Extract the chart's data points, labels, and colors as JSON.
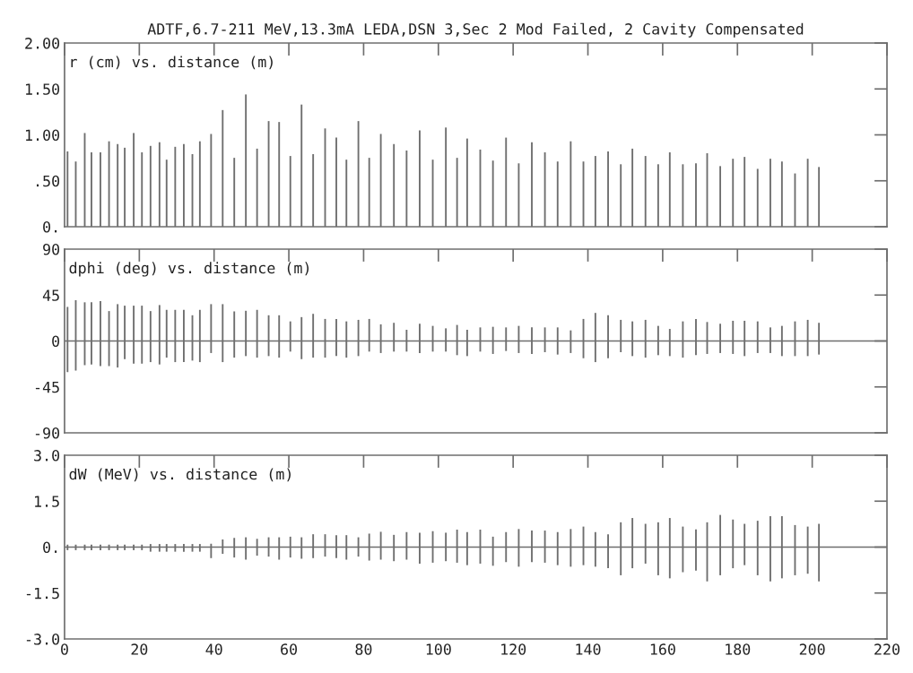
{
  "chart_data": [
    {
      "type": "bar",
      "title": "ADTF,6.7-211 MeV,13.3mA LEDA,DSN 3,Sec 2 Mod Failed, 2 Cavity Compensated",
      "subtitle": "r (cm) vs. distance (m)",
      "color": "#6e6e6e",
      "tick_labels": "y",
      "x": [
        0.8,
        3.0,
        5.4,
        7.2,
        9.6,
        11.9,
        14.2,
        16.1,
        18.5,
        20.7,
        23.0,
        25.4,
        27.3,
        29.6,
        31.9,
        34.2,
        36.2,
        39.2,
        42.3,
        45.4,
        48.5,
        51.5,
        54.6,
        57.4,
        60.4,
        63.4,
        66.5,
        69.7,
        72.7,
        75.4,
        78.6,
        81.5,
        84.6,
        88.1,
        91.5,
        95.0,
        98.5,
        102.0,
        105.0,
        107.7,
        111.2,
        114.6,
        118.1,
        121.5,
        125.0,
        128.5,
        131.9,
        135.4,
        138.8,
        142.0,
        145.4,
        148.8,
        151.9,
        155.4,
        158.8,
        161.9,
        165.4,
        168.9,
        171.9,
        175.4,
        178.8,
        181.9,
        185.4,
        188.8,
        191.9,
        195.4,
        198.8,
        201.8
      ],
      "values": [
        0.82,
        0.71,
        1.02,
        0.81,
        0.81,
        0.93,
        0.9,
        0.86,
        1.02,
        0.81,
        0.88,
        0.92,
        0.73,
        0.87,
        0.9,
        0.79,
        0.93,
        1.01,
        1.27,
        0.75,
        1.44,
        0.85,
        1.15,
        1.14,
        0.77,
        1.33,
        0.79,
        1.07,
        0.97,
        0.73,
        1.15,
        0.75,
        1.01,
        0.9,
        0.83,
        1.05,
        0.73,
        1.08,
        0.75,
        0.96,
        0.84,
        0.72,
        0.97,
        0.69,
        0.92,
        0.81,
        0.71,
        0.93,
        0.71,
        0.77,
        0.82,
        0.68,
        0.85,
        0.77,
        0.68,
        0.81,
        0.68,
        0.69,
        0.8,
        0.66,
        0.74,
        0.76,
        0.63,
        0.74,
        0.71,
        0.58,
        0.74,
        0.65
      ],
      "xlim": [
        0,
        220
      ],
      "xticks": [
        0,
        20,
        40,
        60,
        80,
        100,
        120,
        140,
        160,
        180,
        200,
        220
      ],
      "ylim": [
        0,
        2
      ],
      "yticks": [
        {
          "value": 0,
          "label": "0."
        },
        {
          "value": 0.5,
          "label": ".50"
        },
        {
          "value": 1,
          "label": "1.00"
        },
        {
          "value": 1.5,
          "label": "1.50"
        },
        {
          "value": 2,
          "label": "2.00"
        }
      ],
      "grid": false
    },
    {
      "type": "bar",
      "subtitle": "dphi (deg) vs. distance (m)",
      "color": "#6e6e6e",
      "tick_labels": "y",
      "x": [
        0.8,
        3.0,
        5.4,
        7.2,
        9.6,
        11.9,
        14.2,
        16.1,
        18.5,
        20.7,
        23.0,
        25.4,
        27.3,
        29.6,
        31.9,
        34.2,
        36.2,
        39.2,
        42.3,
        45.4,
        48.5,
        51.5,
        54.6,
        57.4,
        60.4,
        63.4,
        66.5,
        69.7,
        72.7,
        75.4,
        78.6,
        81.5,
        84.6,
        88.1,
        91.5,
        95.0,
        98.5,
        102.0,
        105.0,
        107.7,
        111.2,
        114.6,
        118.1,
        121.5,
        125.0,
        128.5,
        131.9,
        135.4,
        138.8,
        142.0,
        145.4,
        148.8,
        151.9,
        155.4,
        158.8,
        161.9,
        165.4,
        168.9,
        171.9,
        175.4,
        178.8,
        181.9,
        185.4,
        188.8,
        191.9,
        195.4,
        198.8,
        201.8
      ],
      "base": [
        -30.5,
        -29,
        -23.7,
        -23,
        -24.6,
        -24.6,
        -26,
        -17.8,
        -22.2,
        -22.2,
        -20.7,
        -23,
        -16.3,
        -20.7,
        -20.7,
        -19.2,
        -20.7,
        -11.8,
        -20.7,
        -16.3,
        -14.8,
        -16.3,
        -14.8,
        -16.3,
        -10.4,
        -17.8,
        -16.3,
        -16.3,
        -14.8,
        -16.3,
        -14.8,
        -10.4,
        -11.8,
        -10.4,
        -10.4,
        -11.8,
        -10.4,
        -10.4,
        -13.9,
        -14.8,
        -10.4,
        -12.7,
        -9.8,
        -11.8,
        -12.7,
        -11,
        -13.3,
        -11.8,
        -16.9,
        -20.7,
        -16.9,
        -11,
        -14.8,
        -16.3,
        -13.9,
        -14.8,
        -16.3,
        -13.9,
        -12.7,
        -11.8,
        -12.7,
        -14.8,
        -11.8,
        -11.8,
        -14.8,
        -14.8,
        -14.8,
        -13.3
      ],
      "values": [
        63.9,
        69,
        61.6,
        60.9,
        63.6,
        53.9,
        62.1,
        52.4,
        56.8,
        56.8,
        50,
        58.2,
        46.8,
        51.2,
        51.2,
        44.4,
        51.2,
        47.9,
        56.8,
        45.3,
        44.4,
        46.8,
        40,
        41.5,
        29.6,
        41.2,
        42.9,
        37.9,
        36.4,
        35.5,
        35.5,
        32,
        28.1,
        28.2,
        21.4,
        28.7,
        25.2,
        22.8,
        29.6,
        25.8,
        23.7,
        26.6,
        23.1,
        26.6,
        26,
        24.3,
        26.6,
        22.2,
        38.5,
        48.2,
        42.1,
        31.7,
        34,
        37,
        28.7,
        26.6,
        35.5,
        35.5,
        31.3,
        28.7,
        32.5,
        34.6,
        31,
        25.1,
        29.6,
        34,
        35.5,
        31.1
      ],
      "xlim": [
        0,
        220
      ],
      "xticks": [
        0,
        20,
        40,
        60,
        80,
        100,
        120,
        140,
        160,
        180,
        200,
        220
      ],
      "ylim": [
        -90,
        90
      ],
      "yticks": [
        {
          "value": -90,
          "label": "-90"
        },
        {
          "value": -45,
          "label": "-45"
        },
        0,
        45,
        90
      ],
      "ref_lines": [
        {
          "axis": "y",
          "value": 0,
          "color": "#6e6e6e"
        }
      ],
      "grid": false
    },
    {
      "type": "bar",
      "subtitle": "dW (MeV) vs. distance (m)",
      "color": "#6e6e6e",
      "x": [
        0.8,
        3.0,
        5.4,
        7.2,
        9.6,
        11.9,
        14.2,
        16.1,
        18.5,
        20.7,
        23.0,
        25.4,
        27.3,
        29.6,
        31.9,
        34.2,
        36.2,
        39.2,
        42.3,
        45.4,
        48.5,
        51.5,
        54.6,
        57.4,
        60.4,
        63.4,
        66.5,
        69.7,
        72.7,
        75.4,
        78.6,
        81.5,
        84.6,
        88.1,
        91.5,
        95.0,
        98.5,
        102.0,
        105.0,
        107.7,
        111.2,
        114.6,
        118.1,
        121.5,
        125.0,
        128.5,
        131.9,
        135.4,
        138.8,
        142.0,
        145.4,
        148.8,
        151.9,
        155.4,
        158.8,
        161.9,
        165.4,
        168.9,
        171.9,
        175.4,
        178.8,
        181.9,
        185.4,
        188.8,
        191.9,
        195.4,
        198.8,
        201.8
      ],
      "base": [
        -0.1,
        -0.1,
        -0.1,
        -0.1,
        -0.1,
        -0.1,
        -0.1,
        -0.1,
        -0.1,
        -0.1,
        -0.15,
        -0.15,
        -0.15,
        -0.15,
        -0.15,
        -0.15,
        -0.15,
        -0.36,
        -0.22,
        -0.34,
        -0.41,
        -0.28,
        -0.31,
        -0.41,
        -0.34,
        -0.38,
        -0.36,
        -0.31,
        -0.36,
        -0.41,
        -0.31,
        -0.44,
        -0.41,
        -0.46,
        -0.41,
        -0.54,
        -0.51,
        -0.46,
        -0.51,
        -0.59,
        -0.54,
        -0.61,
        -0.49,
        -0.64,
        -0.49,
        -0.51,
        -0.59,
        -0.64,
        -0.59,
        -0.64,
        -0.69,
        -0.92,
        -0.69,
        -0.54,
        -0.92,
        -1.02,
        -0.82,
        -0.77,
        -1.12,
        -0.92,
        -0.69,
        -0.59,
        -0.92,
        -1.12,
        -1.02,
        -0.92,
        -0.87,
        -1.12
      ],
      "values": [
        0.18,
        0.18,
        0.18,
        0.18,
        0.18,
        0.18,
        0.18,
        0.18,
        0.18,
        0.18,
        0.25,
        0.25,
        0.25,
        0.25,
        0.25,
        0.25,
        0.25,
        0.47,
        0.47,
        0.64,
        0.73,
        0.55,
        0.63,
        0.73,
        0.68,
        0.7,
        0.78,
        0.73,
        0.75,
        0.8,
        0.63,
        0.88,
        0.91,
        0.86,
        0.9,
        1.01,
        1.03,
        0.93,
        1.08,
        1.08,
        1.11,
        0.95,
        0.98,
        1.23,
        1.03,
        1.05,
        1.08,
        1.23,
        1.26,
        1.13,
        1.11,
        1.73,
        1.64,
        1.3,
        1.73,
        1.97,
        1.49,
        1.35,
        1.93,
        1.97,
        1.59,
        1.35,
        1.78,
        2.13,
        2.03,
        1.64,
        1.54,
        1.88
      ],
      "xlim": [
        0,
        220
      ],
      "xticks": [
        0,
        20,
        40,
        60,
        80,
        100,
        120,
        140,
        160,
        180,
        200,
        220
      ],
      "ylim": [
        -3,
        3
      ],
      "yticks": [
        {
          "value": -3,
          "label": "-3.0"
        },
        {
          "value": -1.5,
          "label": "-1.5"
        },
        {
          "value": 0,
          "label": "0."
        },
        1.5,
        {
          "value": 3,
          "label": "3.0"
        }
      ],
      "ref_lines": [
        {
          "axis": "y",
          "value": 0,
          "color": "#6e6e6e"
        }
      ],
      "grid": false
    }
  ]
}
